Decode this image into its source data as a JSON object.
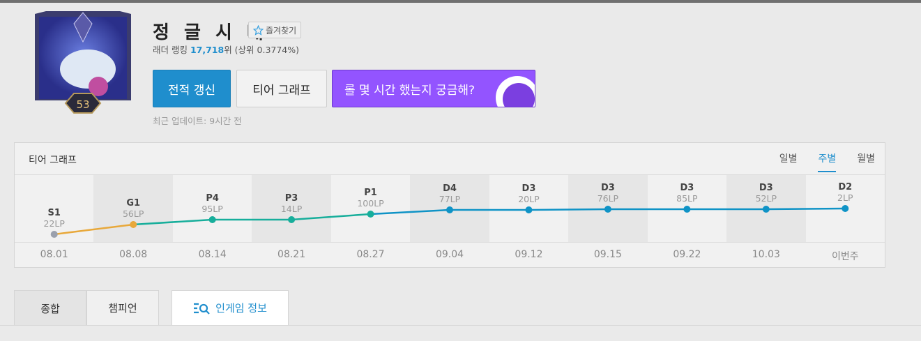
{
  "profile": {
    "name": "정 글 시 대",
    "level": "53",
    "favorite_label": "즐겨찾기",
    "ladder_prefix": "래더 랭킹 ",
    "ladder_rank": "17,718",
    "ladder_suffix": "위 (상위 0.3774%)",
    "last_update": "최근 업데이트: 9시간 전"
  },
  "buttons": {
    "refresh": "전적 갱신",
    "tier_graph": "티어 그래프",
    "promo": "롤 몇 시간 했는지 궁금해?"
  },
  "tier_graph": {
    "title": "티어 그래프",
    "periods": [
      "일별",
      "주별",
      "월별"
    ],
    "active_period": "주별"
  },
  "chart_data": {
    "type": "line",
    "x": [
      "08.01",
      "08.08",
      "08.14",
      "08.21",
      "08.27",
      "09.04",
      "09.12",
      "09.15",
      "09.22",
      "10.03",
      "이번주"
    ],
    "points": [
      {
        "tier": "S1",
        "lp": "22LP"
      },
      {
        "tier": "G1",
        "lp": "56LP"
      },
      {
        "tier": "P4",
        "lp": "95LP"
      },
      {
        "tier": "P3",
        "lp": "14LP"
      },
      {
        "tier": "P1",
        "lp": "100LP"
      },
      {
        "tier": "D4",
        "lp": "77LP"
      },
      {
        "tier": "D3",
        "lp": "20LP"
      },
      {
        "tier": "D3",
        "lp": "76LP"
      },
      {
        "tier": "D3",
        "lp": "85LP"
      },
      {
        "tier": "D3",
        "lp": "52LP"
      },
      {
        "tier": "D2",
        "lp": "2LP"
      }
    ],
    "colors": {
      "silver": "#9aa0ad",
      "gold": "#e8a83a",
      "platinum": "#17ae9b",
      "diamond": "#0f93c6"
    }
  },
  "tabs": [
    "종합",
    "챔피언",
    "인게임 정보"
  ]
}
